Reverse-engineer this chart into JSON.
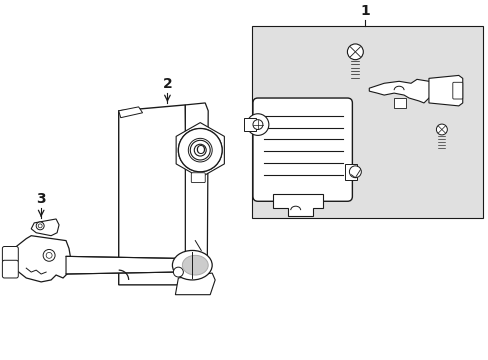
{
  "background_color": "#ffffff",
  "box_bg": "#e0e0e0",
  "line_color": "#1a1a1a",
  "label_1": "1",
  "label_2": "2",
  "label_3": "3",
  "figsize": [
    4.89,
    3.6
  ],
  "dpi": 100
}
